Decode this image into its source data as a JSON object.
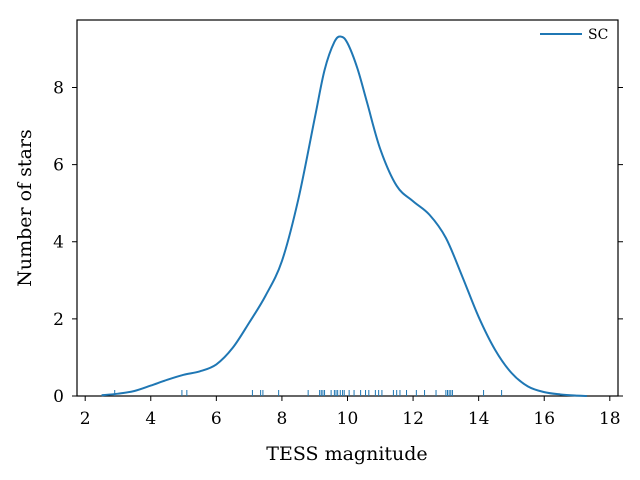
{
  "chart_data": {
    "type": "line",
    "xlabel": "TESS magnitude",
    "ylabel": "Number of stars",
    "xlim": [
      1.75,
      18.25
    ],
    "ylim": [
      0,
      9.75
    ],
    "xticks": [
      2,
      4,
      6,
      8,
      10,
      12,
      14,
      16,
      18
    ],
    "yticks": [
      0,
      2,
      4,
      6,
      8
    ],
    "legend_position": "top-right",
    "series_color": "#1f77b4",
    "series": [
      {
        "name": "SC",
        "x": [
          2.5,
          3.0,
          3.5,
          4.0,
          4.5,
          5.0,
          5.5,
          6.0,
          6.5,
          7.0,
          7.5,
          8.0,
          8.5,
          9.0,
          9.3,
          9.6,
          9.8,
          10.0,
          10.3,
          10.6,
          11.0,
          11.5,
          12.0,
          12.5,
          13.0,
          13.5,
          14.0,
          14.5,
          15.0,
          15.5,
          16.0,
          16.5,
          17.0,
          17.3
        ],
        "y": [
          0.02,
          0.06,
          0.13,
          0.27,
          0.42,
          0.55,
          0.64,
          0.82,
          1.25,
          1.9,
          2.6,
          3.5,
          5.1,
          7.2,
          8.45,
          9.18,
          9.32,
          9.15,
          8.5,
          7.6,
          6.4,
          5.45,
          5.05,
          4.7,
          4.1,
          3.1,
          2.05,
          1.2,
          0.6,
          0.25,
          0.1,
          0.04,
          0.01,
          0.0
        ]
      }
    ],
    "rug": [
      2.9,
      4.95,
      5.1,
      7.1,
      7.35,
      7.42,
      7.9,
      8.8,
      9.15,
      9.2,
      9.25,
      9.3,
      9.5,
      9.6,
      9.65,
      9.7,
      9.78,
      9.85,
      9.9,
      10.05,
      10.2,
      10.4,
      10.55,
      10.65,
      10.85,
      10.95,
      11.05,
      11.4,
      11.5,
      11.6,
      11.8,
      12.1,
      12.35,
      12.7,
      13.0,
      13.05,
      13.1,
      13.15,
      13.2,
      14.15,
      14.7
    ]
  }
}
